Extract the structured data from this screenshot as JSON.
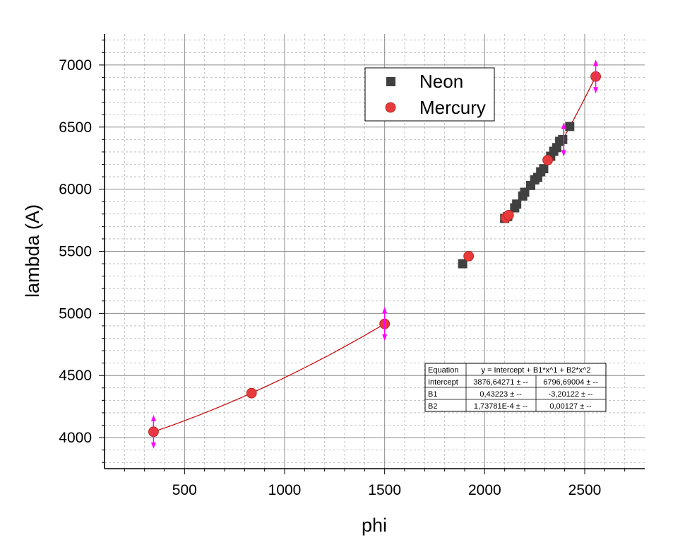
{
  "chart_data": {
    "type": "scatter",
    "xlabel": "phi",
    "ylabel": "lambda (A)",
    "xlim": [
      100,
      2800
    ],
    "ylim": [
      3750,
      7250
    ],
    "x_ticks": [
      500,
      1000,
      1500,
      2000,
      2500
    ],
    "x_tick_labels": [
      "500",
      "1000",
      "1500",
      "2000",
      "2500"
    ],
    "y_ticks": [
      4000,
      4500,
      5000,
      5500,
      6000,
      6500,
      7000
    ],
    "y_tick_labels": [
      "4000",
      "4500",
      "5000",
      "5500",
      "6000",
      "6500",
      "7000"
    ],
    "grid": true,
    "legend_position": "top-right",
    "series": [
      {
        "name": "Neon",
        "marker": "square",
        "color": "#404040",
        "x": [
          1890,
          2100,
          2115,
          2150,
          2160,
          2190,
          2200,
          2230,
          2250,
          2265,
          2280,
          2295,
          2330,
          2345,
          2360,
          2375,
          2390,
          2425
        ],
        "y": [
          5400,
          5765,
          5780,
          5850,
          5880,
          5945,
          5975,
          6030,
          6075,
          6095,
          6140,
          6165,
          6265,
          6305,
          6335,
          6385,
          6400,
          6505
        ]
      },
      {
        "name": "Mercury",
        "marker": "circle",
        "color": "#e83a3a",
        "x": [
          345,
          835,
          1500,
          1920,
          2105,
          2120,
          2315,
          2555
        ],
        "y": [
          4047,
          4358,
          4916,
          5461,
          5770,
          5791,
          6234,
          6907
        ],
        "error_bars": [
          {
            "x": 345,
            "y": 4047
          },
          {
            "x": 1500,
            "y": 4916
          },
          {
            "x": 2395,
            "y": 6400
          },
          {
            "x": 2555,
            "y": 6907
          }
        ]
      }
    ],
    "fit": {
      "color": "#c80000",
      "segments": [
        [
          345,
          1500
        ],
        [
          2395,
          2555
        ]
      ],
      "table": {
        "header": [
          "Equation",
          "y = Intercept + B1*x^1 + B2*x^2"
        ],
        "rows": [
          [
            "Intercept",
            "3876,64271 ± --",
            "6796,69004 ± --"
          ],
          [
            "B1",
            "0,43223 ± --",
            "-3,20122 ± --"
          ],
          [
            "B2",
            "1,73781E-4 ± --",
            "0,00127 ± --"
          ]
        ]
      },
      "models": [
        {
          "intercept": 3876.64271,
          "b1": 0.43223,
          "b2": 0.000173781
        },
        {
          "intercept": 6796.69004,
          "b1": -3.20122,
          "b2": 0.00127
        }
      ]
    },
    "colors": {
      "error_bar": "#ff00ff",
      "grid_major": "#8c8c8c",
      "grid_minor": "#b4b4b4"
    }
  }
}
